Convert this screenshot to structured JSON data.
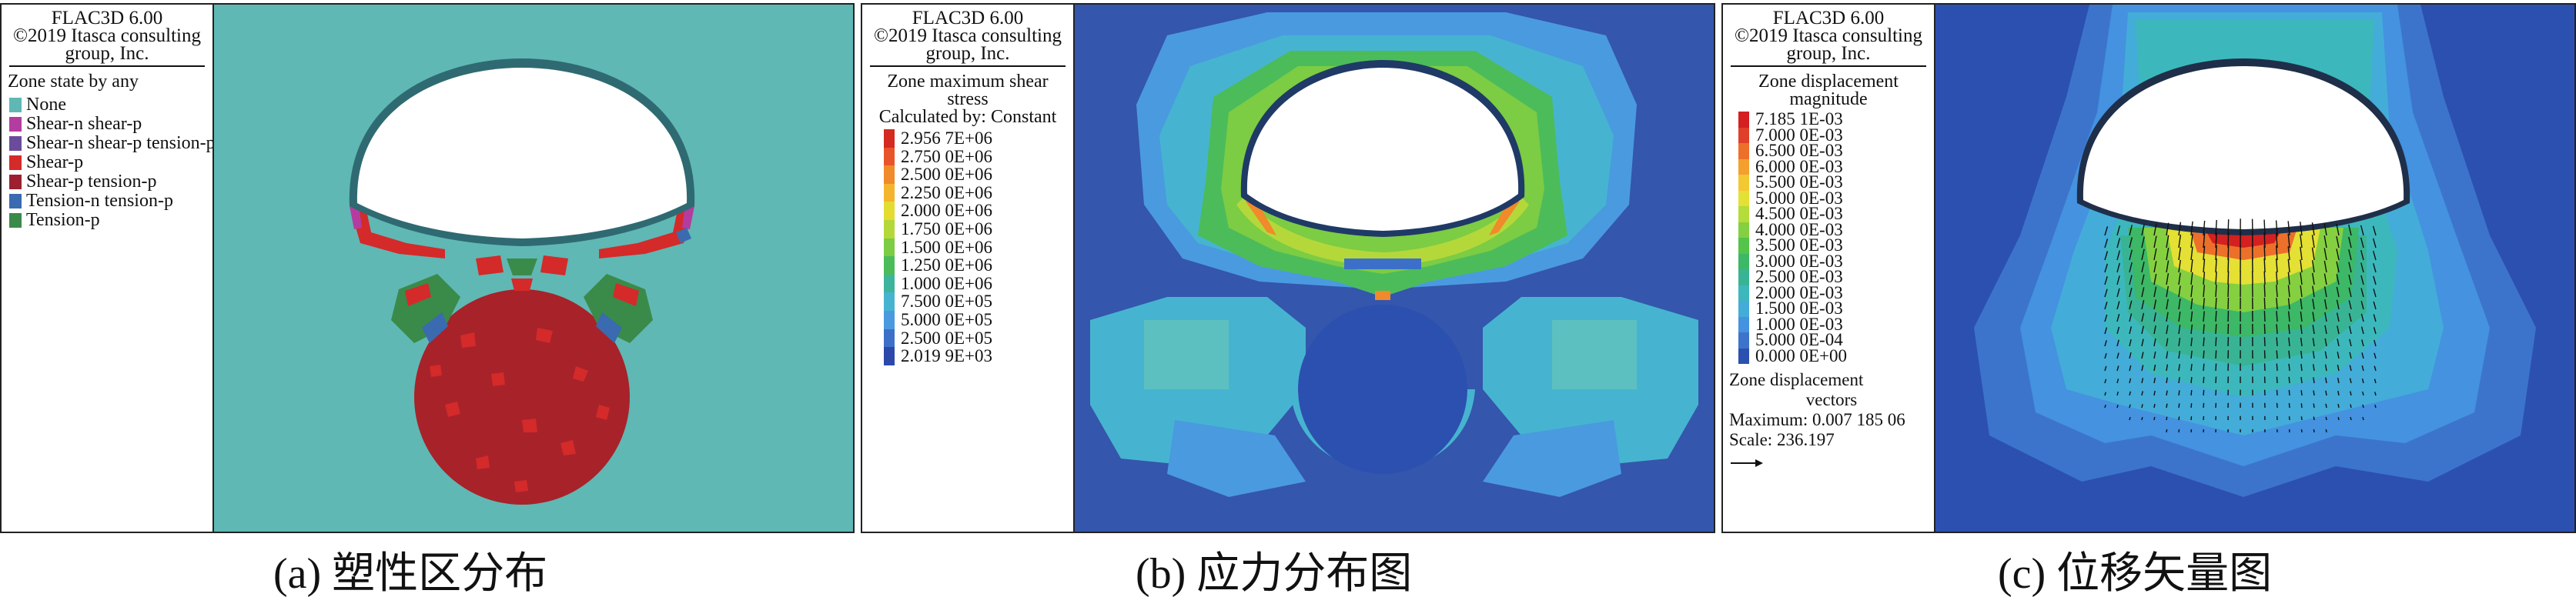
{
  "header": {
    "line1": "FLAC3D 6.00",
    "line2": "©2019 Itasca consulting",
    "line3": "group, Inc."
  },
  "panel_a": {
    "legend_title": "Zone state by any",
    "states": [
      {
        "label": "None",
        "color": "#5fb8b4"
      },
      {
        "label": "Shear-n shear-p",
        "color": "#b43ca0"
      },
      {
        "label": "Shear-n shear-p tension-p",
        "color": "#6a4c9c"
      },
      {
        "label": "Shear-p",
        "color": "#d42a2a"
      },
      {
        "label": "Shear-p tension-p",
        "color": "#9c2030"
      },
      {
        "label": "Tension-n tension-p",
        "color": "#3a6ab0"
      },
      {
        "label": "Tension-p",
        "color": "#3a8a4a"
      }
    ],
    "caption": "(a) 塑性区分布"
  },
  "panel_b": {
    "legend_title_1": "Zone maximum shear",
    "legend_title_2": "stress",
    "legend_calc": "Calculated by: Constant",
    "scale": [
      {
        "label": "2.956 7E+06",
        "color": "#d42a20"
      },
      {
        "label": "2.750 0E+06",
        "color": "#e8542a"
      },
      {
        "label": "2.500 0E+06",
        "color": "#f08a2a"
      },
      {
        "label": "2.250 0E+06",
        "color": "#f4b42e"
      },
      {
        "label": "2.000 0E+06",
        "color": "#e4dc30"
      },
      {
        "label": "1.750 0E+06",
        "color": "#b4d83a"
      },
      {
        "label": "1.500 0E+06",
        "color": "#7ccc44"
      },
      {
        "label": "1.250 0E+06",
        "color": "#4cbc5a"
      },
      {
        "label": "1.000 0E+06",
        "color": "#3eb49c"
      },
      {
        "label": "7.500 0E+05",
        "color": "#46b4d0"
      },
      {
        "label": "5.000 0E+05",
        "color": "#4a9ae0"
      },
      {
        "label": "2.500 0E+05",
        "color": "#3c70c8"
      },
      {
        "label": "2.019 9E+03",
        "color": "#2c48a8"
      }
    ],
    "caption": "(b) 应力分布图"
  },
  "panel_c": {
    "legend_title_1": "Zone displacement",
    "legend_title_2": "magnitude",
    "scale": [
      {
        "label": "7.185 1E-03",
        "color": "#d42020"
      },
      {
        "label": "7.000 0E-03",
        "color": "#e0402a"
      },
      {
        "label": "6.500 0E-03",
        "color": "#ec702a"
      },
      {
        "label": "6.000 0E-03",
        "color": "#f4a02e"
      },
      {
        "label": "5.500 0E-03",
        "color": "#f4c832"
      },
      {
        "label": "5.000 0E-03",
        "color": "#e4e034"
      },
      {
        "label": "4.500 0E-03",
        "color": "#b4dc3a"
      },
      {
        "label": "4.000 0E-03",
        "color": "#84d040"
      },
      {
        "label": "3.500 0E-03",
        "color": "#54c44a"
      },
      {
        "label": "3.000 0E-03",
        "color": "#3cb866"
      },
      {
        "label": "2.500 0E-03",
        "color": "#38b494"
      },
      {
        "label": "2.000 0E-03",
        "color": "#3cb8bc"
      },
      {
        "label": "1.500 0E-03",
        "color": "#44acd8"
      },
      {
        "label": "1.000 0E-03",
        "color": "#4492e0"
      },
      {
        "label": "5.000 0E-04",
        "color": "#3c74cc"
      },
      {
        "label": "0.000 0E+00",
        "color": "#2c50b0"
      }
    ],
    "vectors_title_1": "Zone displacement",
    "vectors_title_2": "vectors",
    "maximum": "Maximum: 0.007 185 06",
    "scale_label": "Scale: 236.197",
    "caption": "(c) 位移矢量图"
  }
}
